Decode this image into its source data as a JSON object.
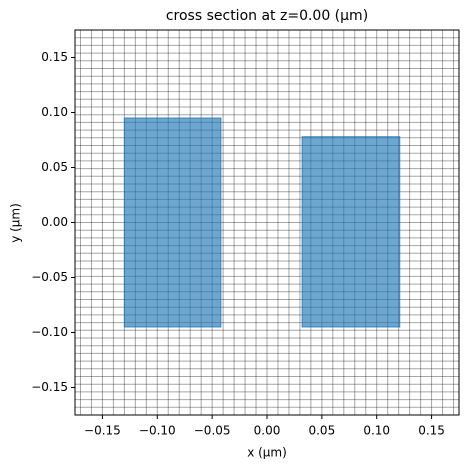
{
  "chart_data": {
    "type": "rects",
    "title": "cross section at z=0.00 (µm)",
    "x_label": "x (µm)",
    "y_label": "y (µm)",
    "xlim": [
      -0.175,
      0.175
    ],
    "ylim": [
      -0.175,
      0.175
    ],
    "xticks": [
      {
        "value": -0.15,
        "label": "−0.15"
      },
      {
        "value": -0.1,
        "label": "−0.10"
      },
      {
        "value": -0.05,
        "label": "−0.05"
      },
      {
        "value": 0,
        "label": "0.00"
      },
      {
        "value": 0.05,
        "label": "0.05"
      },
      {
        "value": 0.1,
        "label": "0.10"
      },
      {
        "value": 0.15,
        "label": "0.15"
      }
    ],
    "yticks": [
      {
        "value": -0.15,
        "label": "−0.15"
      },
      {
        "value": -0.1,
        "label": "−0.10"
      },
      {
        "value": -0.05,
        "label": "−0.05"
      },
      {
        "value": 0,
        "label": "0.00"
      },
      {
        "value": 0.05,
        "label": "0.05"
      },
      {
        "value": 0.1,
        "label": "0.10"
      },
      {
        "value": 0.15,
        "label": "0.15"
      }
    ],
    "color": "#1f77b4",
    "grid_x": [
      -0.17,
      -0.16,
      -0.15,
      -0.14,
      -0.13,
      -0.12,
      -0.11,
      -0.1,
      -0.09,
      -0.08,
      -0.07,
      -0.06,
      -0.05,
      -0.04,
      -0.03,
      -0.02,
      -0.01,
      0,
      0.01,
      0.02,
      0.03,
      0.04,
      0.05,
      0.06,
      0.07,
      0.08,
      0.09,
      0.1,
      0.11,
      0.12,
      0.13,
      0.14,
      0.15,
      0.16,
      0.17
    ],
    "grid_y": [
      -0.168,
      -0.161,
      -0.154,
      -0.147,
      -0.14,
      -0.133,
      -0.126,
      -0.119,
      -0.112,
      -0.105,
      -0.098,
      -0.091,
      -0.084,
      -0.077,
      -0.07,
      -0.063,
      -0.056,
      -0.049,
      -0.042,
      -0.035,
      -0.028,
      -0.021,
      -0.014,
      -0.007,
      0,
      0.007,
      0.014,
      0.021,
      0.028,
      0.035,
      0.042,
      0.049,
      0.056,
      0.063,
      0.07,
      0.077,
      0.084,
      0.091,
      0.098,
      0.105,
      0.112,
      0.119,
      0.126,
      0.133,
      0.14,
      0.147,
      0.154,
      0.161,
      0.168
    ],
    "rectangles": [
      {
        "x": [
          -0.13,
          -0.042
        ],
        "y": [
          -0.095,
          0.095
        ]
      },
      {
        "x": [
          0.032,
          0.121
        ],
        "y": [
          -0.095,
          0.078
        ]
      }
    ]
  }
}
